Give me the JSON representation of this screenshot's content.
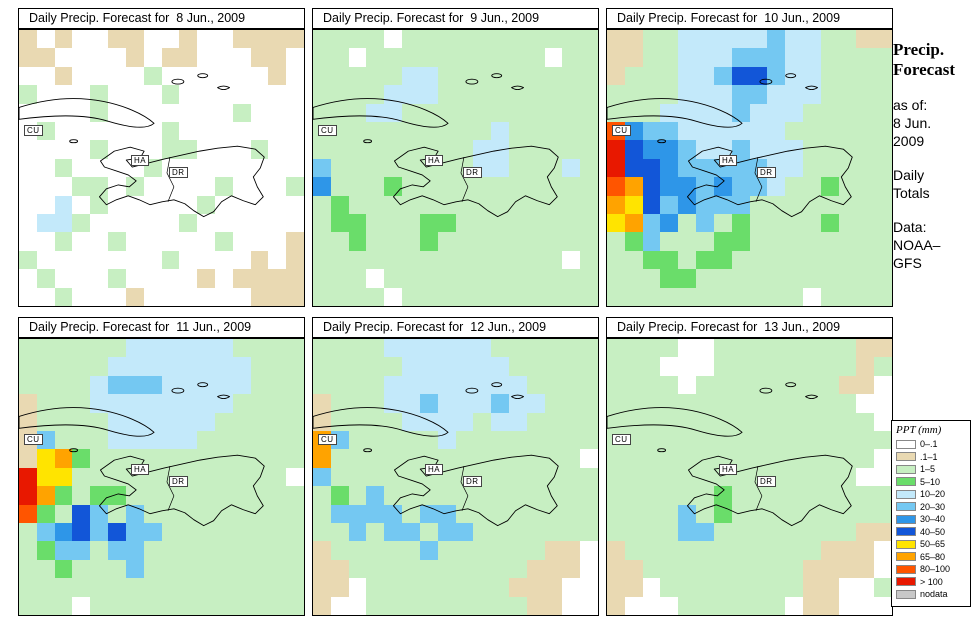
{
  "map_labels": {
    "cu": "CU",
    "ha": "HA",
    "dr": "DR"
  },
  "sidebar": {
    "title_line1": "Precip.",
    "title_line2": "Forecast",
    "asof_label": "as of:",
    "asof_line1": "8 Jun.",
    "asof_line2": "2009",
    "totals_line1": "Daily",
    "totals_line2": "Totals",
    "data_line1": "Data:",
    "data_line2": "NOAA–",
    "data_line3": "GFS"
  },
  "legend": {
    "title": "PPT (mm)",
    "entries": [
      {
        "label": "0–.1",
        "color": "#FFFFFF"
      },
      {
        "label": ".1–1",
        "color": "#E9D9B2"
      },
      {
        "label": "1–5",
        "color": "#C7EFC2"
      },
      {
        "label": "5–10",
        "color": "#6ADD6A"
      },
      {
        "label": "10–20",
        "color": "#C3E9FA"
      },
      {
        "label": "20–30",
        "color": "#74C8F2"
      },
      {
        "label": "30–40",
        "color": "#2E96E8"
      },
      {
        "label": "40–50",
        "color": "#1256D8"
      },
      {
        "label": "50–65",
        "color": "#FFE400"
      },
      {
        "label": "65–80",
        "color": "#FFA300"
      },
      {
        "label": "80–100",
        "color": "#FF5500"
      },
      {
        "label": "> 100",
        "color": "#E81800"
      },
      {
        "label": "nodata",
        "color": "#C8C8C8"
      }
    ]
  },
  "palette": {
    ".": "#FFFFFF",
    "t": "#E9D9B2",
    "g": "#C7EFC2",
    "G": "#6ADD6A",
    "b": "#C3E9FA",
    "B": "#74C8F2",
    "M": "#2E96E8",
    "D": "#1256D8",
    "y": "#FFE400",
    "o": "#FFA300",
    "r": "#FF5500",
    "R": "#E81800",
    "n": "#C8C8C8"
  },
  "panels": [
    {
      "title": "Daily Precip. Forecast for  8 Jun., 2009",
      "grid": [
        "t.t..tt..t..tttt",
        "tt....t.tt...tt.",
        "..t....g......t.",
        "g...g...g.......",
        "....g.......g...",
        ".g......g.......",
        "....g...gg...g..",
        "..g....g........",
        "...gg.g....g...g",
        "..b.g.....g.....",
        ".bbg.....g......",
        "..g..g.....g...t",
        "g.......g....t.t",
        ".g...g....t.tttt",
        "..g...t......ttt"
      ]
    },
    {
      "title": "Daily Precip. Forecast for  9 Jun., 2009",
      "grid": [
        "gggg.ggggggggggg",
        "gg.gggggggggg.gg",
        "gggggbbggggggggg",
        "ggggbbbggggggggg",
        "gggbbggggggggggg",
        "ggggggggggbggggg",
        "gggggggggbbggggg",
        "Bggggggggbbgggbg",
        "MgggGggggggggggg",
        "gGgggggggggggggg",
        "gGGgggGGgggggggg",
        "ggGgggGggggggggg",
        "gggggggggggggg.g",
        "ggg.gggggggggggg",
        "gggg.ggggggggggg"
      ]
    },
    {
      "title": "Daily Precip. Forecast for  10 Jun., 2009",
      "grid": [
        "ttggbbbbbBbbggtt",
        "ttggbbbBBBbbgggg",
        "tgggbbBDDBbbgggg",
        "ggggbbbBBbbbgggg",
        "gggbbbbBbbbggggg",
        "rMBBbbbbbbgggggg",
        "RDMMBbbBbbbggggg",
        "RDDMBBBBBbbggggg",
        "roDMMBMBBbggGggg",
        "oyDBMBBBgggggggg",
        "yoBMgBgGggggGggg",
        "gGBgggGGgggggggg",
        "ggGGgGGggggggggg",
        "gggGGggggggggggg",
        "ggggggggggg.gggg"
      ]
    },
    {
      "title": "Daily Precip. Forecast for  11 Jun., 2009",
      "grid": [
        "ggggggbbbbbbgggg",
        "gggggbbbbbbbbggg",
        "ggggbBBBbbbbbggg",
        "tgggbbbbbbbbgggg",
        "tggggbbbbbbggggg",
        "tBgggbbbbbgggggg",
        "tyoGgggggggggggg",
        "Ryygggggggggggg.",
        "RoGgGGgggggggggg",
        "rGgDBgBggggggggg",
        "gBMDBDBBgggggggg",
        "gGBBgBBggggggggg",
        "ggGgggBggggggggg",
        "gggggggggggggggg",
        "ggg.gggggggggggg"
      ]
    },
    {
      "title": "Daily Precip. Forecast for  12 Jun., 2009",
      "grid": [
        "ggggbbbbbbgggggg",
        "gggggbbbbbbggggg",
        "ggggbbbbbbbbgggg",
        "tgggbbBbbbBbbggg",
        "tggggbbbbgbbgggg",
        "oBgggggbgggggggg",
        "ogggggggggggggg.",
        "Bggggggggggggggg",
        "gGgBgggggggggggg",
        "gBBBBgBBgggggggg",
        "ggBgBBgBBggggggg",
        "tgggggBggggggtt.",
        "ttggggggggggttt.",
        "tt.ggggggggttt..",
        "t..gggggggggtt.."
      ]
    },
    {
      "title": "Daily Precip. Forecast for  13 Jun., 2009",
      "grid": [
        "gggg..ggggggggtt",
        "ggg...ggggggggtg",
        "gggg.ggggggggtt.",
        "gggggggggggggg..",
        "ggggggggggggggg.",
        "gggggggggggggggg",
        "ggggggggggggggg.",
        "gggggggggggggg..",
        "ggggggGggggggggg",
        "ggggBgGggggggggg",
        "ggggBBggggggggtt",
        "tgggggggggggttt.",
        "ttgggggggggtttt.",
        "tt.ggggggggtt..g",
        "t...gggggg.tt..."
      ]
    }
  ]
}
